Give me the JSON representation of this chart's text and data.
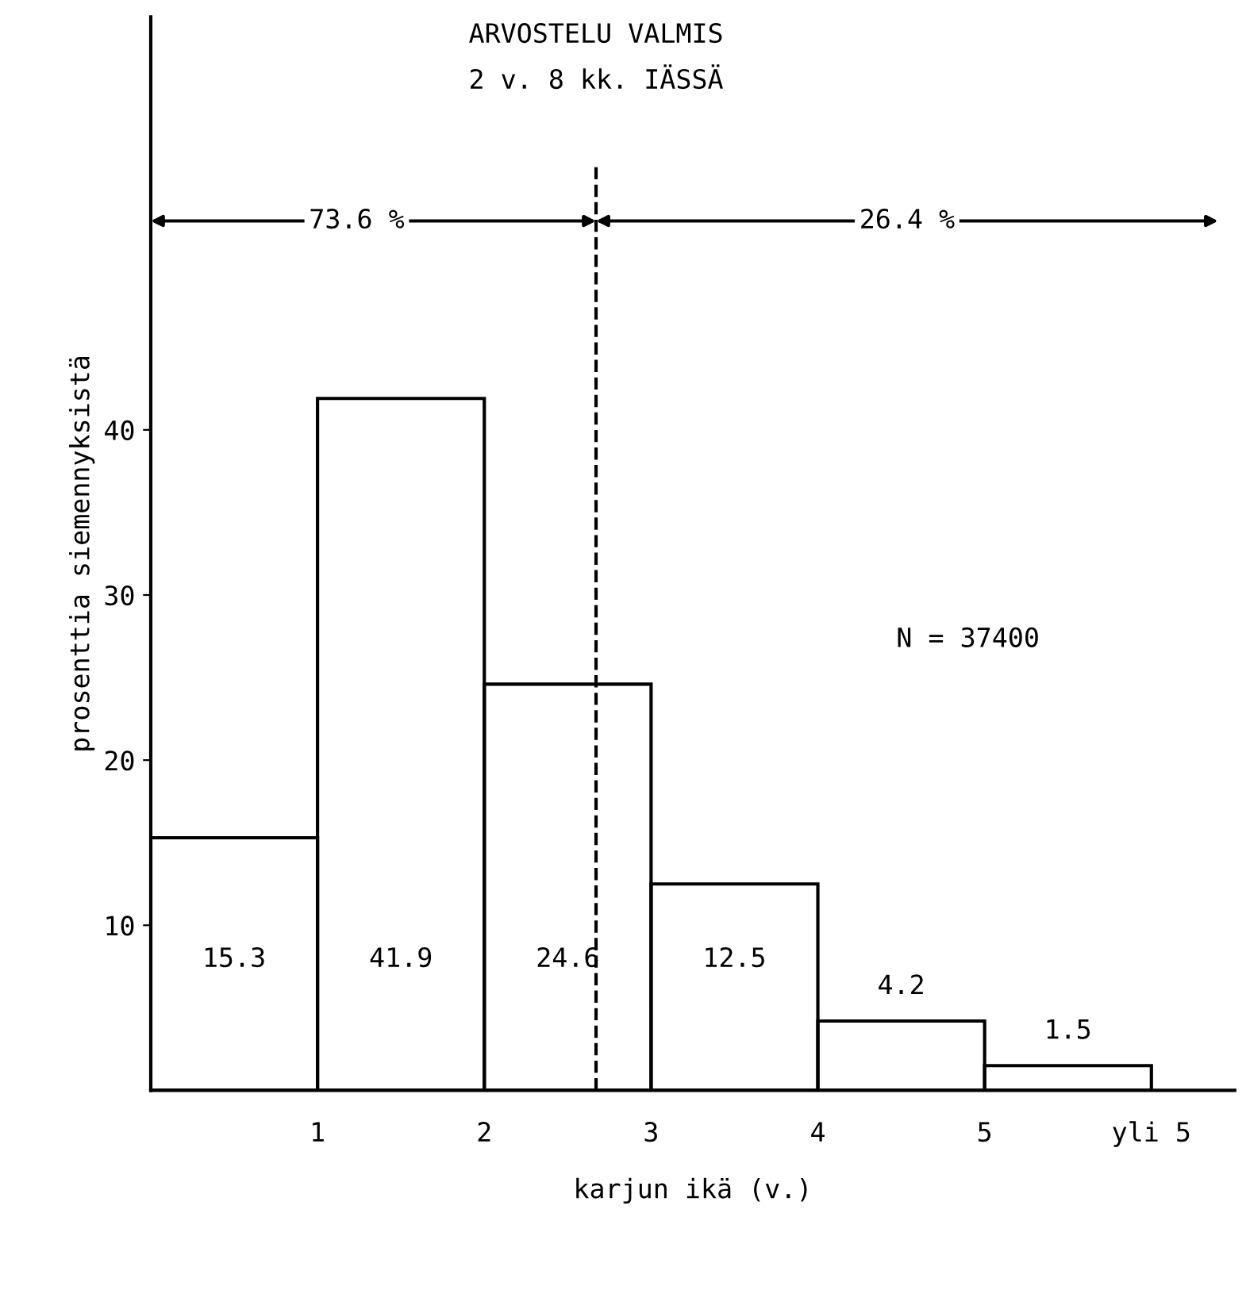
{
  "chart_data": {
    "type": "histogram",
    "bins": [
      0,
      1,
      2,
      3,
      4,
      5,
      6
    ],
    "values": [
      15.3,
      41.9,
      24.6,
      12.5,
      4.2,
      1.5
    ],
    "color": "#000000",
    "data_labels": true,
    "xlabel": "karjun ikä (v.)",
    "ylabel": "prosenttia siemennyksistä",
    "xlim": [
      0,
      6.5
    ],
    "xticks": [
      1,
      2,
      3,
      4,
      5,
      {
        "value": 6,
        "label": "yli 5"
      }
    ],
    "ylim": [
      0,
      65
    ],
    "yticks": [
      10,
      20,
      30,
      40
    ],
    "ref_lines": [
      {
        "axis": "x",
        "value": 2.67,
        "label": "ARVOSTELU VALMIS\n2 v. 8 kk. IÄSSÄ",
        "line_style": "dashed",
        "color": "#000000"
      }
    ],
    "annotations": [
      "73.6 %",
      "26.4 %",
      "N = 37400"
    ],
    "grid": false
  }
}
